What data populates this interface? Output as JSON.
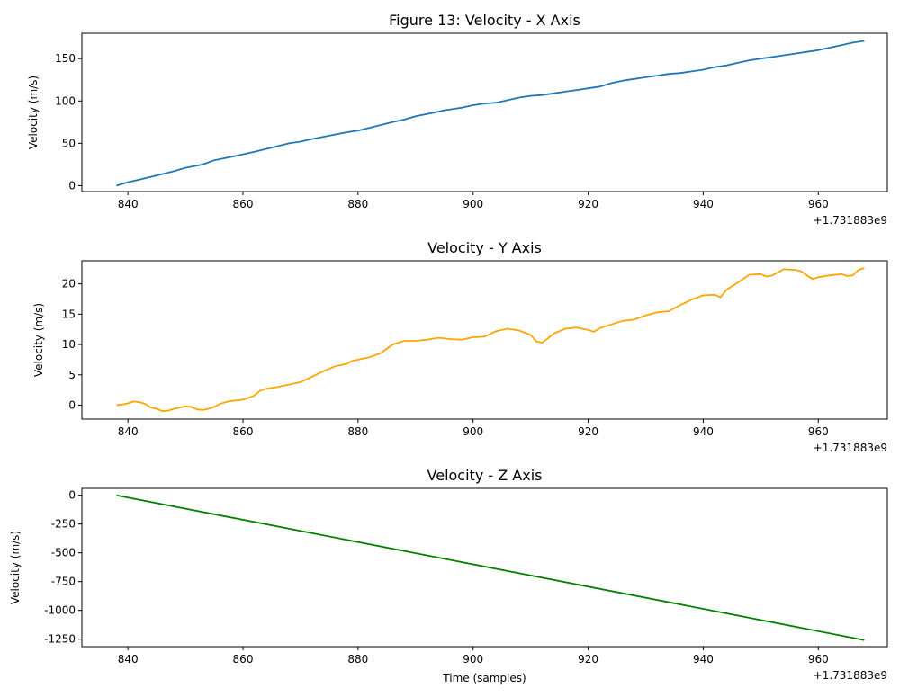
{
  "figure": {
    "background": "#ffffff"
  },
  "chart_data": [
    {
      "type": "line",
      "title": "Figure 13: Velocity - X Axis",
      "xlabel": "",
      "ylabel": "Velocity (m/s)",
      "x_offset_label": "+1.731883e9",
      "xlim": [
        832,
        972
      ],
      "ylim": [
        -7,
        180
      ],
      "xticks": [
        840,
        860,
        880,
        900,
        920,
        940,
        960
      ],
      "yticks": [
        0,
        50,
        100,
        150
      ],
      "grid": false,
      "series": [
        {
          "color": "#1f77b4",
          "x": [
            838,
            840,
            842,
            845,
            848,
            850,
            853,
            855,
            858,
            860,
            862,
            865,
            868,
            870,
            872,
            875,
            878,
            880,
            883,
            886,
            888,
            890,
            893,
            895,
            898,
            900,
            902,
            904,
            906,
            908,
            910,
            912,
            914,
            916,
            918,
            920,
            922,
            924,
            926,
            928,
            930,
            932,
            934,
            936,
            938,
            940,
            942,
            944,
            946,
            948,
            950,
            952,
            954,
            956,
            958,
            960,
            962,
            964,
            966,
            968
          ],
          "y": [
            0,
            4,
            7,
            12,
            17,
            21,
            25,
            30,
            34,
            37,
            40,
            45,
            50,
            52,
            55,
            59,
            63,
            65,
            70,
            75,
            78,
            82,
            86,
            89,
            92,
            95,
            97,
            98,
            101,
            104,
            106,
            107,
            109,
            111,
            113,
            115,
            117,
            121,
            124,
            126,
            128,
            130,
            132,
            133,
            135,
            137,
            140,
            142,
            145,
            148,
            150,
            152,
            154,
            156,
            158,
            160,
            163,
            166,
            169,
            171
          ]
        }
      ]
    },
    {
      "type": "line",
      "title": "Velocity - Y Axis",
      "xlabel": "",
      "ylabel": "Velocity (m/s)",
      "x_offset_label": "+1.731883e9",
      "xlim": [
        832,
        972
      ],
      "ylim": [
        -2.3,
        23.8
      ],
      "xticks": [
        840,
        860,
        880,
        900,
        920,
        940,
        960
      ],
      "yticks": [
        0,
        5,
        10,
        15,
        20
      ],
      "grid": false,
      "series": [
        {
          "color": "#ffa500",
          "x": [
            838,
            839,
            840,
            841,
            842,
            843,
            844,
            845,
            846,
            847,
            848,
            849,
            850,
            851,
            852,
            853,
            854,
            855,
            856,
            857,
            858,
            859,
            860,
            861,
            862,
            863,
            864,
            866,
            868,
            870,
            872,
            874,
            876,
            878,
            879,
            880,
            882,
            884,
            886,
            888,
            890,
            892,
            894,
            896,
            898,
            900,
            902,
            904,
            906,
            908,
            910,
            911,
            912,
            913,
            914,
            916,
            918,
            920,
            921,
            922,
            924,
            926,
            928,
            930,
            932,
            934,
            936,
            938,
            940,
            942,
            943,
            944,
            946,
            948,
            950,
            951,
            952,
            954,
            956,
            957,
            958,
            959,
            960,
            962,
            964,
            965,
            966,
            967,
            968
          ],
          "y": [
            0,
            0.1,
            0.3,
            0.6,
            0.5,
            0.2,
            -0.4,
            -0.6,
            -1.0,
            -0.9,
            -0.6,
            -0.4,
            -0.2,
            -0.3,
            -0.7,
            -0.8,
            -0.6,
            -0.3,
            0.2,
            0.5,
            0.7,
            0.8,
            0.9,
            1.2,
            1.6,
            2.4,
            2.7,
            3.0,
            3.4,
            3.8,
            4.7,
            5.6,
            6.4,
            6.8,
            7.3,
            7.5,
            7.9,
            8.6,
            10.0,
            10.6,
            10.6,
            10.8,
            11.1,
            10.9,
            10.8,
            11.2,
            11.3,
            12.2,
            12.6,
            12.3,
            11.6,
            10.5,
            10.3,
            11.0,
            11.8,
            12.6,
            12.8,
            12.4,
            12.1,
            12.7,
            13.3,
            13.9,
            14.1,
            14.8,
            15.3,
            15.5,
            16.5,
            17.4,
            18.1,
            18.2,
            17.8,
            19.0,
            20.2,
            21.5,
            21.6,
            21.2,
            21.4,
            22.4,
            22.3,
            22.1,
            21.4,
            20.8,
            21.1,
            21.4,
            21.6,
            21.3,
            21.4,
            22.3,
            22.6
          ]
        }
      ]
    },
    {
      "type": "line",
      "title": "Velocity - Z Axis",
      "xlabel": "Time (samples)",
      "ylabel": "Velocity (m/s)",
      "x_offset_label": "+1.731883e9",
      "xlim": [
        832,
        972
      ],
      "ylim": [
        -1315,
        60
      ],
      "xticks": [
        840,
        860,
        880,
        900,
        920,
        940,
        960
      ],
      "yticks": [
        0,
        -250,
        -500,
        -750,
        -1000,
        -1250
      ],
      "grid": false,
      "series": [
        {
          "color": "#008000",
          "x": [
            838,
            968
          ],
          "y": [
            0,
            -1258
          ]
        }
      ]
    }
  ]
}
